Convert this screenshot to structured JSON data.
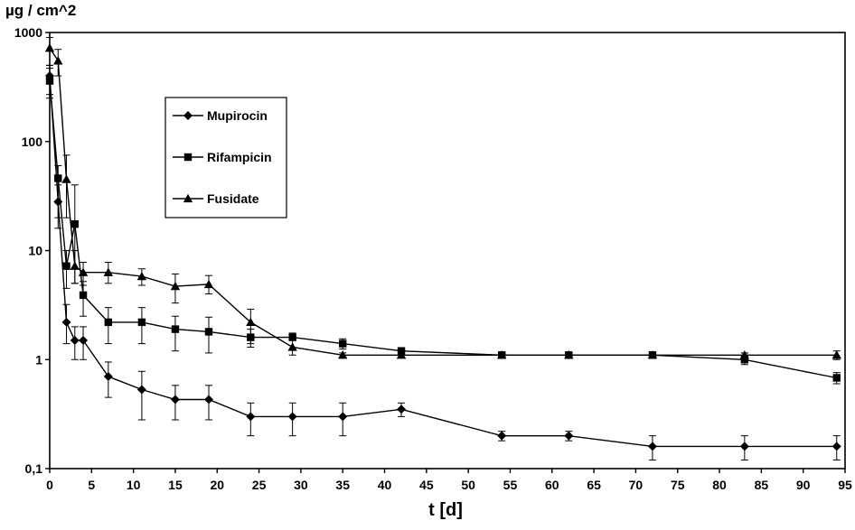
{
  "chart_data": {
    "type": "line",
    "ylabel": "µg / cm^2",
    "xlabel": "t [d]",
    "yscale": "log",
    "ylim": [
      0.1,
      1000
    ],
    "xlim": [
      0,
      95
    ],
    "x_ticks": [
      "0",
      "5",
      "10",
      "15",
      "20",
      "25",
      "30",
      "35",
      "40",
      "45",
      "50",
      "55",
      "60",
      "65",
      "70",
      "75",
      "80",
      "85",
      "90",
      "95"
    ],
    "y_ticks": [
      "0,1",
      "1",
      "10",
      "100",
      "1000"
    ],
    "grid": false,
    "legend_position": "top-left (inside plot)",
    "series": [
      {
        "name": "Mupirocin",
        "marker": "diamond",
        "points": [
          {
            "x": 0,
            "y": 400,
            "lo": 250,
            "hi": 500
          },
          {
            "x": 1,
            "y": 28,
            "lo": 16,
            "hi": 40
          },
          {
            "x": 2,
            "y": 2.2,
            "lo": 1.4,
            "hi": 3.2
          },
          {
            "x": 3,
            "y": 1.5,
            "lo": 1.0,
            "hi": 2.0
          },
          {
            "x": 4,
            "y": 1.5,
            "lo": 1.0,
            "hi": 2.0
          },
          {
            "x": 7,
            "y": 0.7,
            "lo": 0.45,
            "hi": 0.95
          },
          {
            "x": 11,
            "y": 0.53,
            "lo": 0.28,
            "hi": 0.78
          },
          {
            "x": 15,
            "y": 0.43,
            "lo": 0.28,
            "hi": 0.58
          },
          {
            "x": 19,
            "y": 0.43,
            "lo": 0.28,
            "hi": 0.58
          },
          {
            "x": 24,
            "y": 0.3,
            "lo": 0.2,
            "hi": 0.4
          },
          {
            "x": 29,
            "y": 0.3,
            "lo": 0.2,
            "hi": 0.4
          },
          {
            "x": 35,
            "y": 0.3,
            "lo": 0.2,
            "hi": 0.4
          },
          {
            "x": 42,
            "y": 0.35,
            "lo": 0.3,
            "hi": 0.4
          },
          {
            "x": 54,
            "y": 0.2,
            "lo": 0.18,
            "hi": 0.22
          },
          {
            "x": 62,
            "y": 0.2,
            "lo": 0.18,
            "hi": 0.22
          },
          {
            "x": 72,
            "y": 0.16,
            "lo": 0.12,
            "hi": 0.2
          },
          {
            "x": 83,
            "y": 0.16,
            "lo": 0.12,
            "hi": 0.2
          },
          {
            "x": 94,
            "y": 0.16,
            "lo": 0.12,
            "hi": 0.2
          }
        ]
      },
      {
        "name": "Rifampicin",
        "marker": "square",
        "points": [
          {
            "x": 0,
            "y": 360,
            "lo": 270,
            "hi": 470
          },
          {
            "x": 1,
            "y": 46,
            "lo": 20,
            "hi": 60
          },
          {
            "x": 2,
            "y": 7.2,
            "lo": 4.5,
            "hi": 10
          },
          {
            "x": 3,
            "y": 17.5,
            "lo": 5,
            "hi": 40
          },
          {
            "x": 4,
            "y": 3.9,
            "lo": 2.5,
            "hi": 5.2
          },
          {
            "x": 7,
            "y": 2.2,
            "lo": 1.4,
            "hi": 3.0
          },
          {
            "x": 11,
            "y": 2.2,
            "lo": 1.4,
            "hi": 3.0
          },
          {
            "x": 15,
            "y": 1.9,
            "lo": 1.2,
            "hi": 2.5
          },
          {
            "x": 19,
            "y": 1.8,
            "lo": 1.15,
            "hi": 2.45
          },
          {
            "x": 24,
            "y": 1.6,
            "lo": 1.3,
            "hi": 1.9
          },
          {
            "x": 29,
            "y": 1.6,
            "lo": 1.5,
            "hi": 1.75
          },
          {
            "x": 35,
            "y": 1.4,
            "lo": 1.25,
            "hi": 1.55
          },
          {
            "x": 42,
            "y": 1.2,
            "lo": 1.15,
            "hi": 1.25
          },
          {
            "x": 54,
            "y": 1.1,
            "lo": 1.05,
            "hi": 1.15
          },
          {
            "x": 62,
            "y": 1.1,
            "lo": 1.05,
            "hi": 1.15
          },
          {
            "x": 72,
            "y": 1.1,
            "lo": 1.05,
            "hi": 1.15
          },
          {
            "x": 83,
            "y": 1.0,
            "lo": 0.9,
            "hi": 1.15
          },
          {
            "x": 94,
            "y": 0.68,
            "lo": 0.6,
            "hi": 0.76
          }
        ]
      },
      {
        "name": "Fusidate",
        "marker": "triangle",
        "points": [
          {
            "x": 0,
            "y": 720,
            "lo": 500,
            "hi": 900
          },
          {
            "x": 1,
            "y": 550,
            "lo": 400,
            "hi": 700
          },
          {
            "x": 2,
            "y": 45,
            "lo": 20,
            "hi": 75
          },
          {
            "x": 3,
            "y": 7.2,
            "lo": 5,
            "hi": 10
          },
          {
            "x": 4,
            "y": 6.3,
            "lo": 4.8,
            "hi": 7.8
          },
          {
            "x": 7,
            "y": 6.3,
            "lo": 5,
            "hi": 7.8
          },
          {
            "x": 11,
            "y": 5.8,
            "lo": 4.8,
            "hi": 6.8
          },
          {
            "x": 15,
            "y": 4.7,
            "lo": 3.3,
            "hi": 6.1
          },
          {
            "x": 19,
            "y": 4.9,
            "lo": 4.0,
            "hi": 5.9
          },
          {
            "x": 24,
            "y": 2.2,
            "lo": 1.4,
            "hi": 2.9
          },
          {
            "x": 29,
            "y": 1.3,
            "lo": 1.1,
            "hi": 1.5
          },
          {
            "x": 35,
            "y": 1.1,
            "lo": 1.05,
            "hi": 1.15
          },
          {
            "x": 42,
            "y": 1.1,
            "lo": 1.05,
            "hi": 1.15
          },
          {
            "x": 54,
            "y": 1.1,
            "lo": 1.05,
            "hi": 1.15
          },
          {
            "x": 62,
            "y": 1.1,
            "lo": 1.05,
            "hi": 1.15
          },
          {
            "x": 72,
            "y": 1.1,
            "lo": 1.05,
            "hi": 1.15
          },
          {
            "x": 83,
            "y": 1.1,
            "lo": 1.05,
            "hi": 1.15
          },
          {
            "x": 94,
            "y": 1.1,
            "lo": 1.0,
            "hi": 1.2
          }
        ]
      }
    ]
  }
}
